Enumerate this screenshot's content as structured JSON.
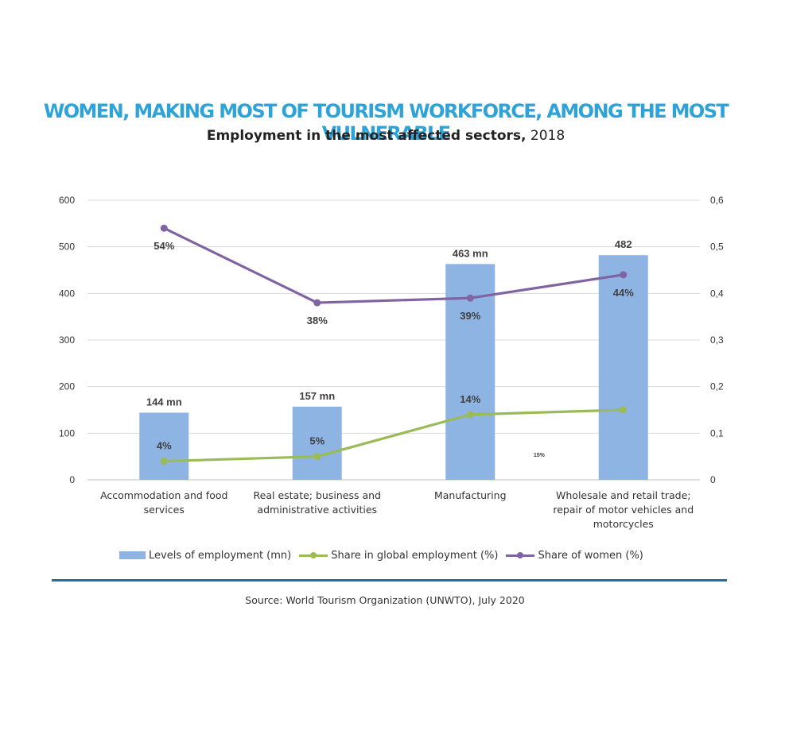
{
  "title": "WOMEN, MAKING MOST OF TOURISM WORKFORCE, AMONG THE MOST VULNERABLE",
  "subtitle_bold": "Employment in the most affected sectors,",
  "subtitle_year": " 2018",
  "source": "Source: World Tourism Organization (UNWTO), July 2020",
  "colors": {
    "title": "#2ea3d8",
    "bars": "#8db4e2",
    "share_global": "#9bbb59",
    "share_women": "#8064a2",
    "rule": "#1f6fa4"
  },
  "chart_data": {
    "type": "bar",
    "categories": [
      [
        "Accommodation and food",
        "services"
      ],
      [
        "Real estate; business and",
        "administrative activities"
      ],
      [
        "Manufacturing"
      ],
      [
        "Wholesale and retail trade;",
        "repair of motor vehicles and",
        "motorcycles"
      ]
    ],
    "ylim": [
      0,
      600
    ],
    "y2lim": [
      0,
      0.6
    ],
    "yticks": [
      "0",
      "100",
      "200",
      "300",
      "400",
      "500",
      "600"
    ],
    "y2ticks": [
      "0",
      "0,1",
      "0,2",
      "0,3",
      "0,4",
      "0,5",
      "0,6"
    ],
    "grid": true,
    "legend_position": "bottom",
    "series": [
      {
        "name": "Levels of employment (mn)",
        "type": "bar",
        "axis": "left",
        "values": [
          144,
          157,
          463,
          482
        ],
        "labels": [
          "144 mn",
          "157 mn",
          "463 mn",
          "482"
        ]
      },
      {
        "name": "Share in global employment (%)",
        "type": "line",
        "axis": "right",
        "values": [
          0.04,
          0.05,
          0.14,
          0.15
        ],
        "labels": [
          "4%",
          "5%",
          "14%",
          "15%"
        ]
      },
      {
        "name": "Share of women (%)",
        "type": "line",
        "axis": "right",
        "values": [
          0.54,
          0.38,
          0.39,
          0.44
        ],
        "labels": [
          "54%",
          "38%",
          "39%",
          "44%"
        ]
      }
    ]
  }
}
